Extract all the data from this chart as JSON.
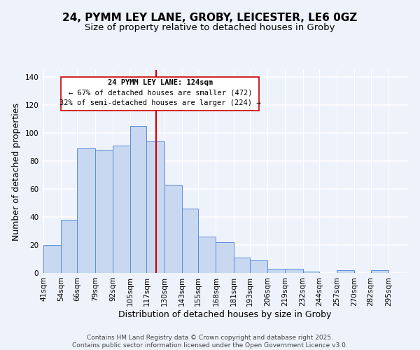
{
  "title": "24, PYMM LEY LANE, GROBY, LEICESTER, LE6 0GZ",
  "subtitle": "Size of property relative to detached houses in Groby",
  "xlabel": "Distribution of detached houses by size in Groby",
  "ylabel": "Number of detached properties",
  "bin_labels": [
    "41sqm",
    "54sqm",
    "66sqm",
    "79sqm",
    "92sqm",
    "105sqm",
    "117sqm",
    "130sqm",
    "143sqm",
    "155sqm",
    "168sqm",
    "181sqm",
    "193sqm",
    "206sqm",
    "219sqm",
    "232sqm",
    "244sqm",
    "257sqm",
    "270sqm",
    "282sqm",
    "295sqm"
  ],
  "bin_edges": [
    41,
    54,
    66,
    79,
    92,
    105,
    117,
    130,
    143,
    155,
    168,
    181,
    193,
    206,
    219,
    232,
    244,
    257,
    270,
    282,
    295
  ],
  "bar_heights": [
    20,
    38,
    89,
    88,
    91,
    105,
    94,
    63,
    46,
    26,
    22,
    11,
    9,
    3,
    3,
    1,
    0,
    2,
    0,
    2
  ],
  "bar_color": "#c8d8f0",
  "bar_edge_color": "#5b8dd9",
  "vline_x": 124,
  "vline_color": "#cc0000",
  "annotation_lines": [
    "24 PYMM LEY LANE: 124sqm",
    "← 67% of detached houses are smaller (472)",
    "32% of semi-detached houses are larger (224) →"
  ],
  "annotation_box_color": "#cc0000",
  "ylim": [
    0,
    145
  ],
  "yticks": [
    0,
    20,
    40,
    60,
    80,
    100,
    120,
    140
  ],
  "background_color": "#eef2fb",
  "grid_color": "#ffffff",
  "footer_lines": [
    "Contains HM Land Registry data © Crown copyright and database right 2025.",
    "Contains public sector information licensed under the Open Government Licence v3.0."
  ],
  "title_fontsize": 11,
  "subtitle_fontsize": 9.5,
  "axis_label_fontsize": 9,
  "tick_fontsize": 7.5,
  "annotation_fontsize": 7.5,
  "footer_fontsize": 6.5
}
